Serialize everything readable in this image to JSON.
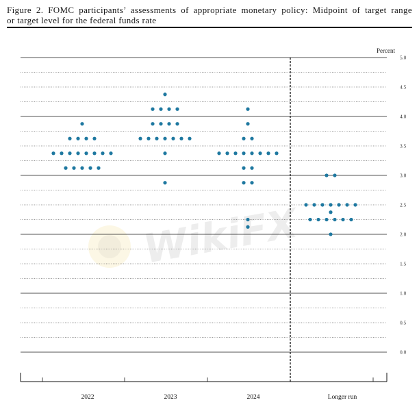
{
  "watermark": "WikiFX",
  "chart_data": {
    "type": "scatter",
    "title": [
      "Figure 2. FOMC participants’ assessments of appropriate monetary policy: Midpoint of target range",
      "or target level for the federal funds rate"
    ],
    "ylabel": "Percent",
    "ylim": [
      0,
      5
    ],
    "yticks": [
      "0.0",
      "0.5",
      "1.0",
      "1.5",
      "2.0",
      "2.5",
      "3.0",
      "3.5",
      "4.0",
      "4.5",
      "5.0"
    ],
    "categories": [
      "2022",
      "2023",
      "2024",
      "Longer run"
    ],
    "grid": true,
    "dot_color": "#1e78a0",
    "dots": [
      {
        "category": "2022",
        "points": [
          {
            "y": 3.875,
            "count": 1
          },
          {
            "y": 3.625,
            "count": 4
          },
          {
            "y": 3.375,
            "count": 8
          },
          {
            "y": 3.125,
            "count": 5
          }
        ]
      },
      {
        "category": "2023",
        "points": [
          {
            "y": 4.375,
            "count": 1
          },
          {
            "y": 4.125,
            "count": 4
          },
          {
            "y": 3.875,
            "count": 4
          },
          {
            "y": 3.625,
            "count": 7
          },
          {
            "y": 3.375,
            "count": 1
          },
          {
            "y": 2.875,
            "count": 1
          }
        ]
      },
      {
        "category": "2024",
        "points": [
          {
            "y": 4.125,
            "count": 1
          },
          {
            "y": 3.875,
            "count": 1
          },
          {
            "y": 3.625,
            "count": 2
          },
          {
            "y": 3.375,
            "count": 8
          },
          {
            "y": 3.125,
            "count": 2
          },
          {
            "y": 2.875,
            "count": 2
          },
          {
            "y": 2.25,
            "count": 1
          },
          {
            "y": 2.125,
            "count": 1
          }
        ]
      },
      {
        "category": "Longer run",
        "points": [
          {
            "y": 3.0,
            "count": 2
          },
          {
            "y": 2.5,
            "count": 7
          },
          {
            "y": 2.375,
            "count": 1
          },
          {
            "y": 2.25,
            "count": 6
          },
          {
            "y": 2.0,
            "count": 1
          }
        ]
      }
    ]
  }
}
